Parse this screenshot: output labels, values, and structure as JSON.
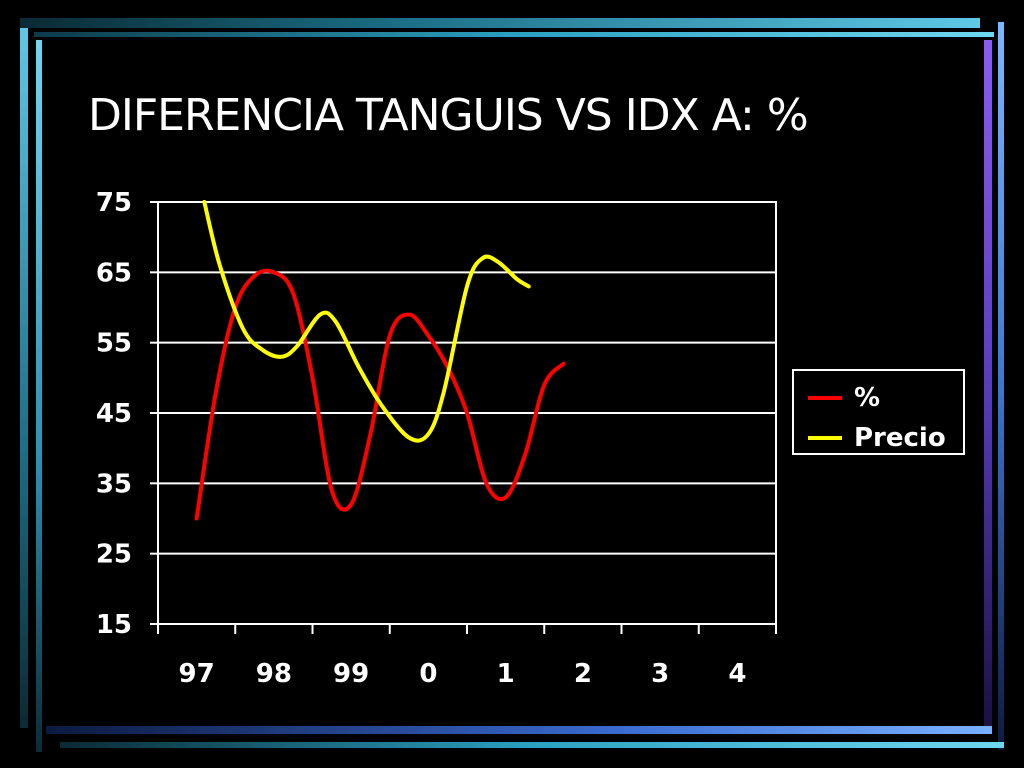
{
  "slide": {
    "title": "DIFERENCIA TANGUIS VS IDX A: %",
    "colors": {
      "background": "#000000",
      "frame_top": "#5ec8e6",
      "frame_right": "#7a5cf0"
    }
  },
  "chart_data": {
    "type": "line",
    "title": "",
    "xlabel": "",
    "ylabel": "",
    "ylim": [
      15,
      75
    ],
    "yticks": [
      15,
      25,
      35,
      45,
      55,
      65,
      75
    ],
    "categories": [
      "97",
      "98",
      "99",
      "0",
      "1",
      "2",
      "3",
      "4"
    ],
    "grid": true,
    "legend_position": "right",
    "series": [
      {
        "name": "%",
        "color": "#ff0000",
        "points": [
          [
            97.0,
            30
          ],
          [
            97.25,
            48
          ],
          [
            97.5,
            60
          ],
          [
            97.75,
            64.5
          ],
          [
            98.0,
            65
          ],
          [
            98.25,
            62
          ],
          [
            98.5,
            50
          ],
          [
            98.75,
            34
          ],
          [
            99.0,
            32
          ],
          [
            99.25,
            42
          ],
          [
            99.5,
            56
          ],
          [
            99.75,
            59
          ],
          [
            100.0,
            56
          ],
          [
            100.25,
            51.5
          ],
          [
            100.5,
            45
          ],
          [
            100.75,
            35
          ],
          [
            101.0,
            33
          ],
          [
            101.25,
            39
          ],
          [
            101.5,
            49
          ],
          [
            101.75,
            52
          ]
        ]
      },
      {
        "name": "Precio",
        "color": "#ffff00",
        "points": [
          [
            97.1,
            75
          ],
          [
            97.3,
            66
          ],
          [
            97.6,
            57
          ],
          [
            97.85,
            54
          ],
          [
            98.1,
            53
          ],
          [
            98.3,
            54.5
          ],
          [
            98.6,
            59
          ],
          [
            98.8,
            58
          ],
          [
            99.1,
            51.5
          ],
          [
            99.4,
            46
          ],
          [
            99.75,
            41.5
          ],
          [
            100.0,
            42
          ],
          [
            100.2,
            48
          ],
          [
            100.5,
            63
          ],
          [
            100.7,
            67
          ],
          [
            100.9,
            66.5
          ],
          [
            101.15,
            64
          ],
          [
            101.3,
            63
          ]
        ]
      }
    ]
  }
}
